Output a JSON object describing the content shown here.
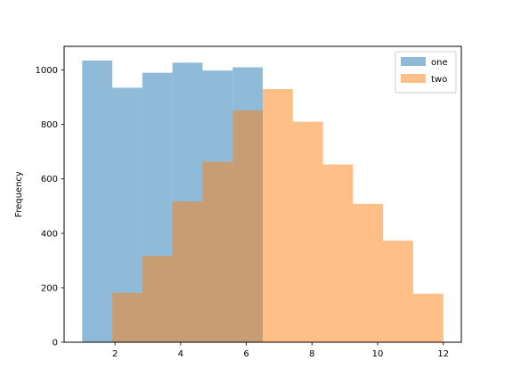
{
  "chart_data": {
    "type": "bar",
    "subtype": "histogram",
    "title": "",
    "xlabel": "",
    "ylabel": "Frequency",
    "xlim": [
      0.45,
      12.55
    ],
    "ylim": [
      0,
      1087
    ],
    "xticks": [
      2,
      4,
      6,
      8,
      10,
      12
    ],
    "yticks": [
      0,
      200,
      400,
      600,
      800,
      1000
    ],
    "grid": false,
    "legend_position": "upper right",
    "series": [
      {
        "name": "one",
        "color": "#1f77b4",
        "alpha": 0.5,
        "bins": [
          {
            "x0": 1.0,
            "x1": 1.917,
            "count": 1035
          },
          {
            "x0": 1.917,
            "x1": 2.833,
            "count": 935
          },
          {
            "x0": 2.833,
            "x1": 3.75,
            "count": 990
          },
          {
            "x0": 3.75,
            "x1": 4.667,
            "count": 1027
          },
          {
            "x0": 4.667,
            "x1": 5.583,
            "count": 998
          },
          {
            "x0": 5.583,
            "x1": 6.5,
            "count": 1010
          }
        ]
      },
      {
        "name": "two",
        "color": "#ff7f0e",
        "alpha": 0.5,
        "bins": [
          {
            "x0": 1.917,
            "x1": 2.833,
            "count": 181
          },
          {
            "x0": 2.833,
            "x1": 3.75,
            "count": 317
          },
          {
            "x0": 3.75,
            "x1": 4.667,
            "count": 517
          },
          {
            "x0": 4.667,
            "x1": 5.583,
            "count": 663
          },
          {
            "x0": 5.583,
            "x1": 6.5,
            "count": 852
          },
          {
            "x0": 6.5,
            "x1": 7.417,
            "count": 930
          },
          {
            "x0": 7.417,
            "x1": 8.333,
            "count": 810
          },
          {
            "x0": 8.333,
            "x1": 9.25,
            "count": 653
          },
          {
            "x0": 9.25,
            "x1": 10.167,
            "count": 508
          },
          {
            "x0": 10.167,
            "x1": 11.083,
            "count": 373
          },
          {
            "x0": 11.083,
            "x1": 12.0,
            "count": 178
          }
        ]
      }
    ]
  }
}
